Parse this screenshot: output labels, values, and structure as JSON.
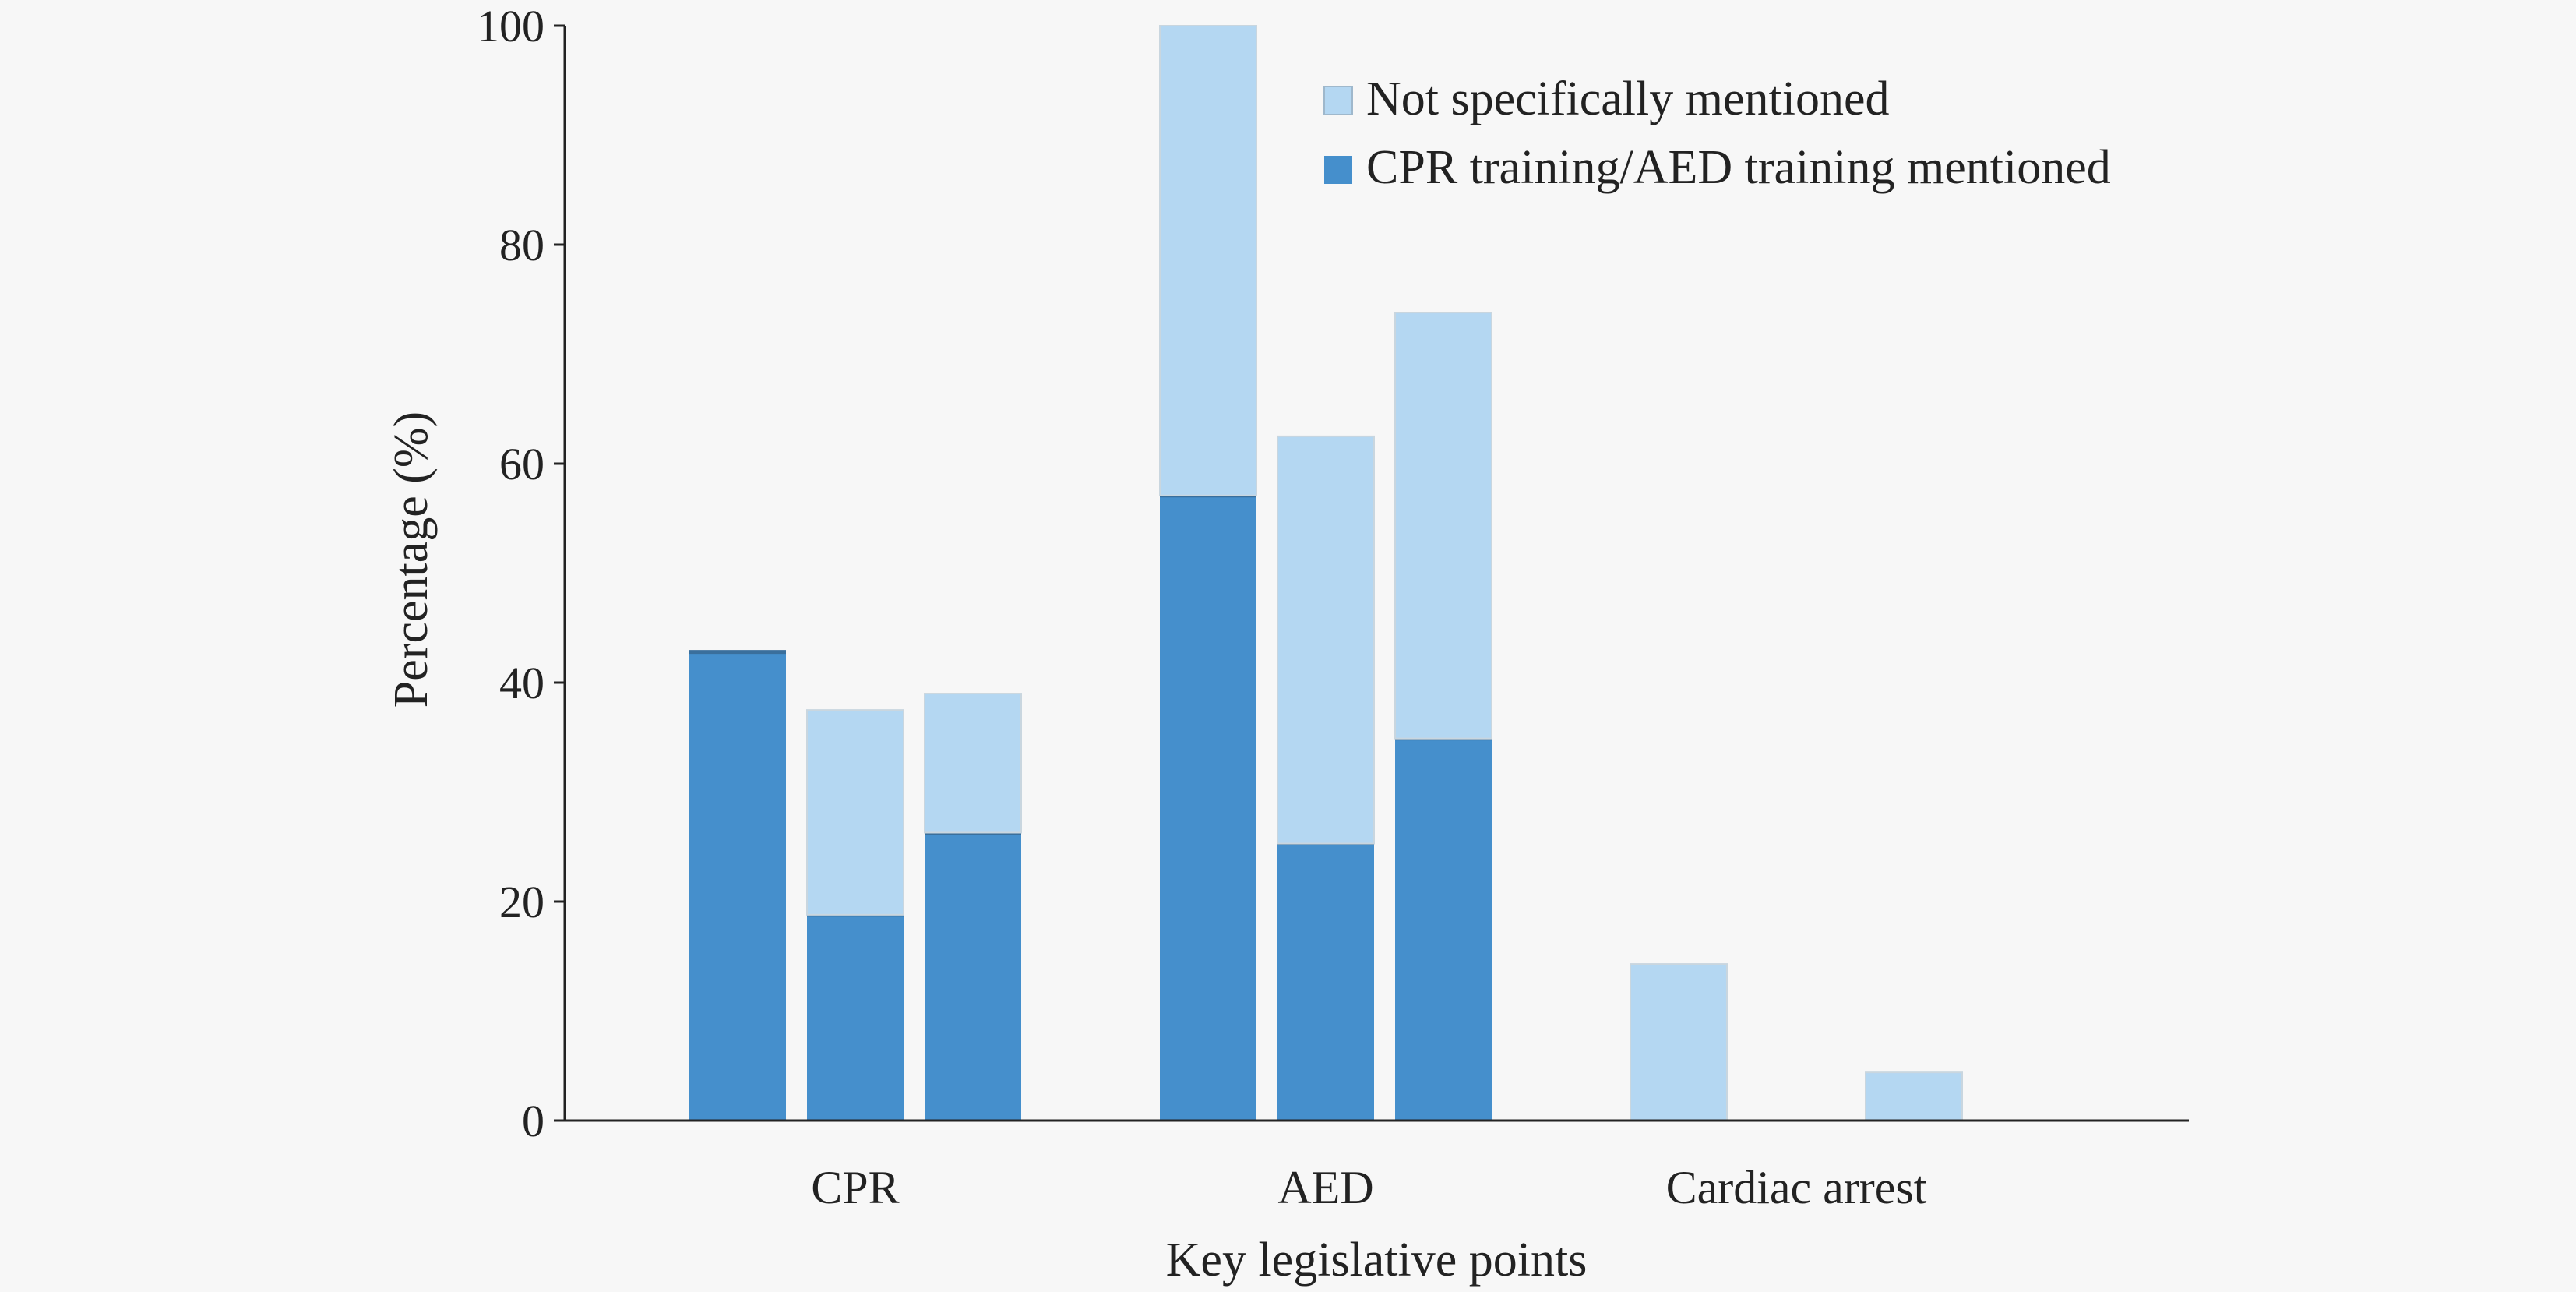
{
  "colors": {
    "background": "#f7f7f7",
    "mentioned": "#458fcc",
    "not_mentioned": "#b4d7f2",
    "axis": "#222222"
  },
  "chart_data": {
    "type": "bar",
    "stacked": true,
    "xlabel": "Key legislative points",
    "ylabel": "Percentage (%)",
    "ylim": [
      0,
      100
    ],
    "yticks": [
      0,
      20,
      40,
      60,
      80,
      100
    ],
    "categories": [
      "CPR",
      "AED",
      "Cardiac arrest"
    ],
    "legend_position": "top-right",
    "series": [
      {
        "name": "Not specifically mentioned",
        "color": "#b4d7f2"
      },
      {
        "name": "CPR training/AED training mentioned",
        "color": "#458fcc"
      }
    ],
    "bars": [
      {
        "category": "CPR",
        "mentioned": 42.8,
        "not_mentioned": 0.0
      },
      {
        "category": "CPR",
        "mentioned": 18.8,
        "not_mentioned": 18.7
      },
      {
        "category": "CPR",
        "mentioned": 26.3,
        "not_mentioned": 12.7
      },
      {
        "category": "AED",
        "mentioned": 57.1,
        "not_mentioned": 42.9
      },
      {
        "category": "AED",
        "mentioned": 25.3,
        "not_mentioned": 37.2
      },
      {
        "category": "AED",
        "mentioned": 34.9,
        "not_mentioned": 38.9
      },
      {
        "category": "Cardiac arrest",
        "mentioned": 0.0,
        "not_mentioned": 14.3
      },
      {
        "category": "Cardiac arrest",
        "mentioned": 0.0,
        "not_mentioned": 0.0
      },
      {
        "category": "Cardiac arrest",
        "mentioned": 0.0,
        "not_mentioned": 4.4
      }
    ]
  }
}
